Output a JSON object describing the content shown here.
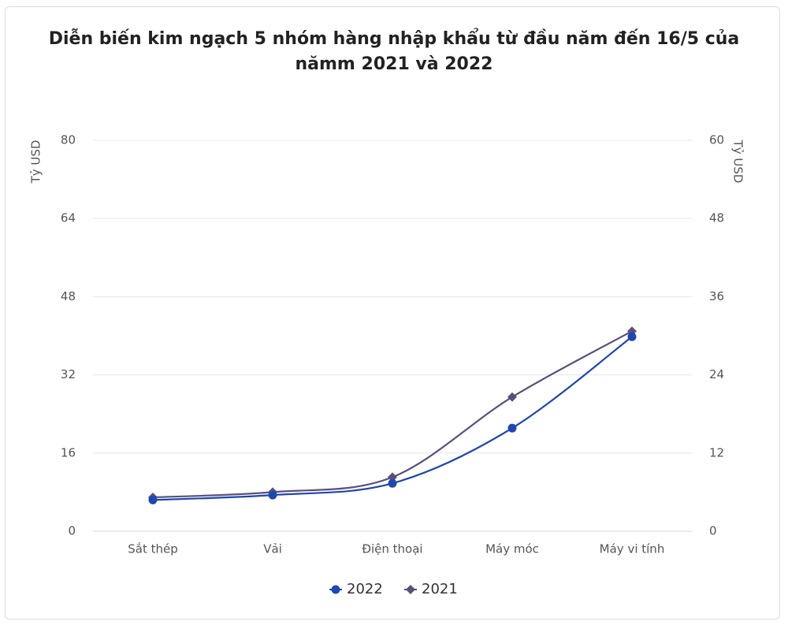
{
  "chart_data": {
    "type": "line",
    "title": "Diễn biến kim ngạch 5 nhóm hàng nhập khẩu từ đầu năm đến 16/5 của nămm 2021 và 2022",
    "y_label": "Tỷ USD",
    "y2_label": "Tỷ USD",
    "categories": [
      "Sắt thép",
      "Vải",
      "Điện thoại",
      "Máy móc",
      "Máy vi tính"
    ],
    "ylim": [
      0,
      80
    ],
    "yticks": [
      0,
      16,
      32,
      48,
      64,
      80
    ],
    "y2lim": [
      0,
      60
    ],
    "y2ticks": [
      0,
      12,
      24,
      36,
      48,
      60
    ],
    "grid": true,
    "legend": "bottom",
    "series": [
      {
        "name": "2022",
        "color": "#1f47b0",
        "marker": "circle",
        "values": [
          6.4,
          7.4,
          9.8,
          21.1,
          39.8
        ]
      },
      {
        "name": "2021",
        "color": "#5b4f7a",
        "marker": "diamond",
        "axis": "y2",
        "values": [
          5.2,
          6.0,
          8.3,
          20.6,
          30.7
        ]
      }
    ]
  }
}
